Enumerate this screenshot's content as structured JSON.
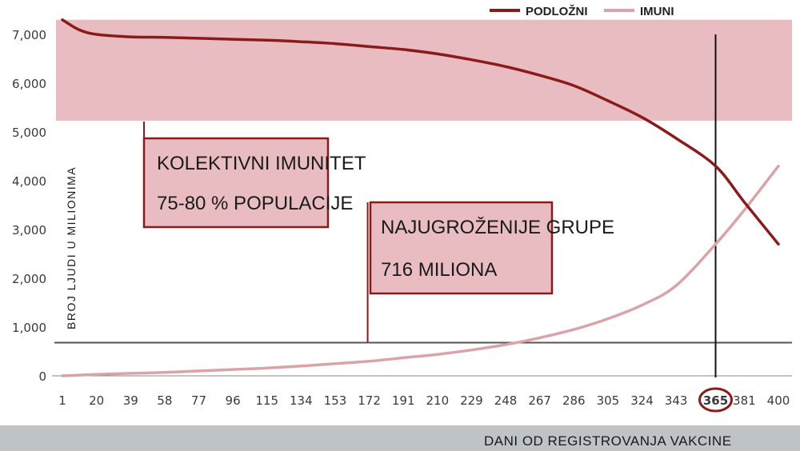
{
  "chart_data": {
    "type": "line",
    "ylabel": "BROJ LJUDI U MILIONIMA",
    "xlabel": "DANI OD REGISTROVANJA VAKCINE",
    "ylim": [
      0,
      7300
    ],
    "xlim": [
      1,
      400
    ],
    "y_ticks": [
      "0",
      "1,000",
      "2,000",
      "3,000",
      "4,000",
      "5,000",
      "6,000",
      "7,000"
    ],
    "y_tick_values": [
      0,
      1000,
      2000,
      3000,
      4000,
      5000,
      6000,
      7000
    ],
    "x_ticks": [
      "1",
      "20",
      "39",
      "58",
      "77",
      "96",
      "115",
      "134",
      "153",
      "172",
      "191",
      "210",
      "229",
      "248",
      "267",
      "286",
      "305",
      "324",
      "343",
      "365",
      "381",
      "400"
    ],
    "x_tick_values": [
      1,
      20,
      39,
      58,
      77,
      96,
      115,
      134,
      153,
      172,
      191,
      210,
      229,
      248,
      267,
      286,
      305,
      324,
      343,
      365,
      381,
      400
    ],
    "highlighted_x_tick": "365",
    "grid": false,
    "legend_position": "top-right",
    "series": [
      {
        "name": "PODLOŽNI",
        "color": "#8b1a1a",
        "x": [
          1,
          10,
          20,
          39,
          58,
          77,
          96,
          115,
          134,
          153,
          172,
          191,
          210,
          229,
          248,
          267,
          286,
          305,
          324,
          343,
          365,
          381,
          400
        ],
        "values": [
          7300,
          7100,
          7000,
          6950,
          6940,
          6920,
          6900,
          6880,
          6850,
          6810,
          6750,
          6690,
          6600,
          6480,
          6340,
          6160,
          5950,
          5640,
          5300,
          4870,
          4300,
          3560,
          2700
        ]
      },
      {
        "name": "IMUNI",
        "color": "#d9a3a8",
        "x": [
          1,
          20,
          39,
          58,
          77,
          96,
          115,
          134,
          153,
          172,
          191,
          210,
          229,
          248,
          267,
          286,
          305,
          324,
          343,
          365,
          381,
          400
        ],
        "values": [
          0,
          30,
          50,
          70,
          100,
          130,
          160,
          200,
          250,
          300,
          370,
          440,
          530,
          640,
          780,
          950,
          1170,
          1450,
          1850,
          2700,
          3400,
          4300
        ]
      }
    ],
    "bands": [
      {
        "label": "KOLEKTIVNI IMUNITET",
        "sublabel": "75-80 % POPULACIJE",
        "y_from": 5230,
        "y_to": 7300,
        "color": "#e8bcc0"
      }
    ],
    "reference_lines": [
      {
        "axis": "y",
        "value": 680,
        "color": "#555555"
      },
      {
        "axis": "x",
        "value": 365,
        "color": "#111111",
        "y_top": 7000
      }
    ],
    "annotations": [
      {
        "text": "NAJUGROŽENIJE GRUPE",
        "subtext": "716 MILIONA",
        "pointer_x": 172
      }
    ]
  }
}
